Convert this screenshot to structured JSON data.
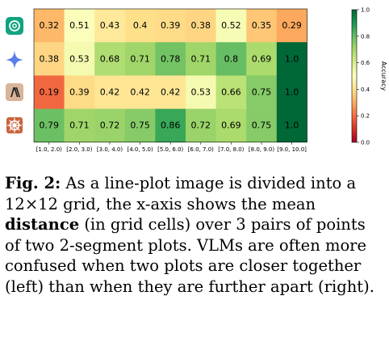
{
  "chart_data": {
    "type": "heatmap",
    "rows": [
      "ChatGPT",
      "Gemini",
      "Claude",
      "Sonnet"
    ],
    "columns": [
      "[1.0, 2.0)",
      "[2.0, 3.0)",
      "[3.0, 4.0)",
      "[4.0, 5.0)",
      "[5.0, 6.0)",
      "[6.0, 7.0)",
      "[7.0, 8.0)",
      "[8.0, 9.0)",
      "[9.0, 10.0]"
    ],
    "values": [
      [
        0.32,
        0.51,
        0.43,
        0.4,
        0.39,
        0.38,
        0.52,
        0.35,
        0.29
      ],
      [
        0.38,
        0.53,
        0.68,
        0.71,
        0.78,
        0.71,
        0.8,
        0.69,
        1.0
      ],
      [
        0.19,
        0.39,
        0.42,
        0.42,
        0.42,
        0.53,
        0.66,
        0.75,
        1.0
      ],
      [
        0.79,
        0.71,
        0.72,
        0.75,
        0.86,
        0.72,
        0.69,
        0.75,
        1.0
      ]
    ],
    "value_labels": [
      [
        "0.32",
        "0.51",
        "0.43",
        "0.4",
        "0.39",
        "0.38",
        "0.52",
        "0.35",
        "0.29"
      ],
      [
        "0.38",
        "0.53",
        "0.68",
        "0.71",
        "0.78",
        "0.71",
        "0.8",
        "0.69",
        "1.0"
      ],
      [
        "0.19",
        "0.39",
        "0.42",
        "0.42",
        "0.42",
        "0.53",
        "0.66",
        "0.75",
        "1.0"
      ],
      [
        "0.79",
        "0.71",
        "0.72",
        "0.75",
        "0.86",
        "0.72",
        "0.69",
        "0.75",
        "1.0"
      ]
    ],
    "colorbar": {
      "label": "Accuracy",
      "ticks": [
        "0.0",
        "0.2",
        "0.4",
        "0.6",
        "0.8",
        "1.0"
      ],
      "range": [
        0,
        1
      ],
      "colormap": "RdYlGn"
    }
  },
  "caption": {
    "label": "Fig. 2:",
    "part1": " As a line-plot image is divided into a 12×12 grid, the x-axis shows the mean ",
    "bold_word": "distance",
    "part2": " (in grid cells) over 3 pairs of points of two 2-segment plots. VLMs are often more confused when two plots are closer together (left) than when they are further apart (right)."
  },
  "icons": [
    "chatgpt-logo-icon",
    "gemini-sparkle-icon",
    "anthropic-logo-icon",
    "sonnet-logo-icon"
  ]
}
